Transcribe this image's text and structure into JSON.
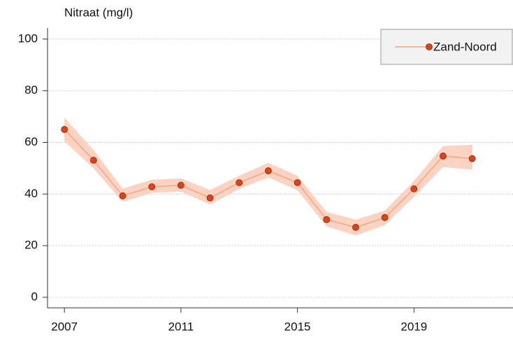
{
  "chart_data": {
    "type": "line",
    "title": "Nitraat (mg/l)",
    "x": [
      2007,
      2008,
      2009,
      2010,
      2011,
      2012,
      2013,
      2014,
      2015,
      2016,
      2017,
      2018,
      2019,
      2020,
      2021
    ],
    "series": [
      {
        "name": "Zand-Noord",
        "color": "#f4a582",
        "marker_color": "#e0421a",
        "band_color": "#fbd3c3",
        "values": [
          65.0,
          53.1,
          39.3,
          42.8,
          43.4,
          38.5,
          44.4,
          49.0,
          44.4,
          30.1,
          27.1,
          30.9,
          42.0,
          54.7,
          53.7
        ],
        "lower": [
          60.5,
          50,
          37,
          40.5,
          41,
          36,
          42,
          46.5,
          41.5,
          27.5,
          24,
          28,
          39,
          50.5,
          49.5
        ],
        "upper": [
          69.5,
          57,
          42,
          45.5,
          46,
          41.5,
          47,
          52,
          47,
          33,
          30,
          33.5,
          45,
          58.5,
          59
        ]
      }
    ],
    "xlim": [
      2006.42,
      2022.4
    ],
    "xticks": [
      2007,
      2011,
      2015,
      2019
    ],
    "ylim": [
      -4.07,
      104.3
    ],
    "yticks": [
      0,
      20,
      40,
      60,
      80,
      100
    ],
    "grid": true,
    "legend": "top-right"
  }
}
